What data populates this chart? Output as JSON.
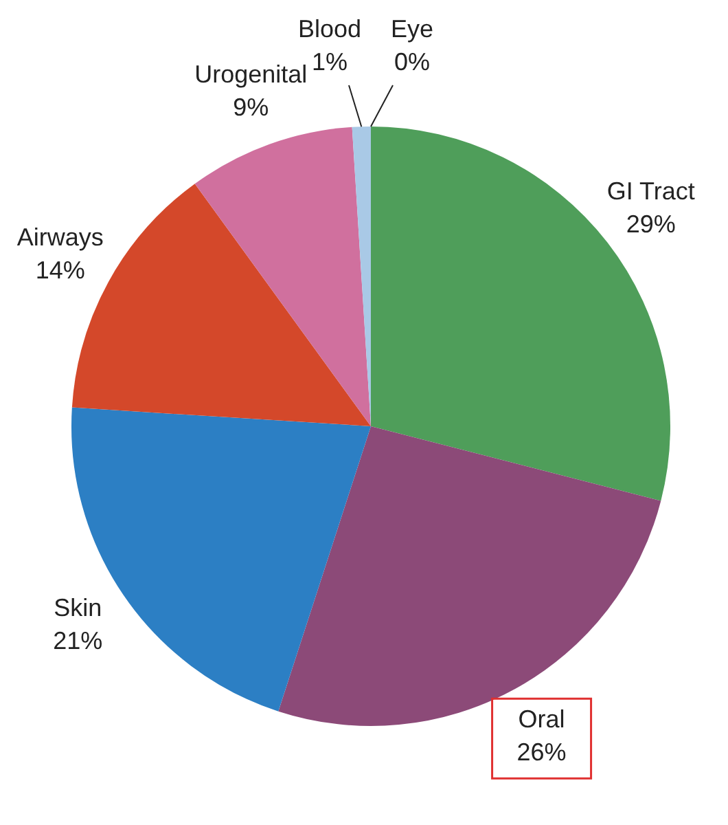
{
  "chart_data": {
    "type": "pie",
    "categories": [
      "GI Tract",
      "Oral",
      "Skin",
      "Airways",
      "Urogenital",
      "Blood",
      "Eye"
    ],
    "values": [
      29,
      26,
      21,
      14,
      9,
      1,
      0
    ],
    "colors": [
      "#4f9e5a",
      "#8c4a78",
      "#2c7fc4",
      "#d4482a",
      "#d0709e",
      "#a9c9e6",
      "#e0262a"
    ],
    "value_labels": [
      "29%",
      "26%",
      "21%",
      "14%",
      "9%",
      "1%",
      "0%"
    ],
    "legend": false
  }
}
